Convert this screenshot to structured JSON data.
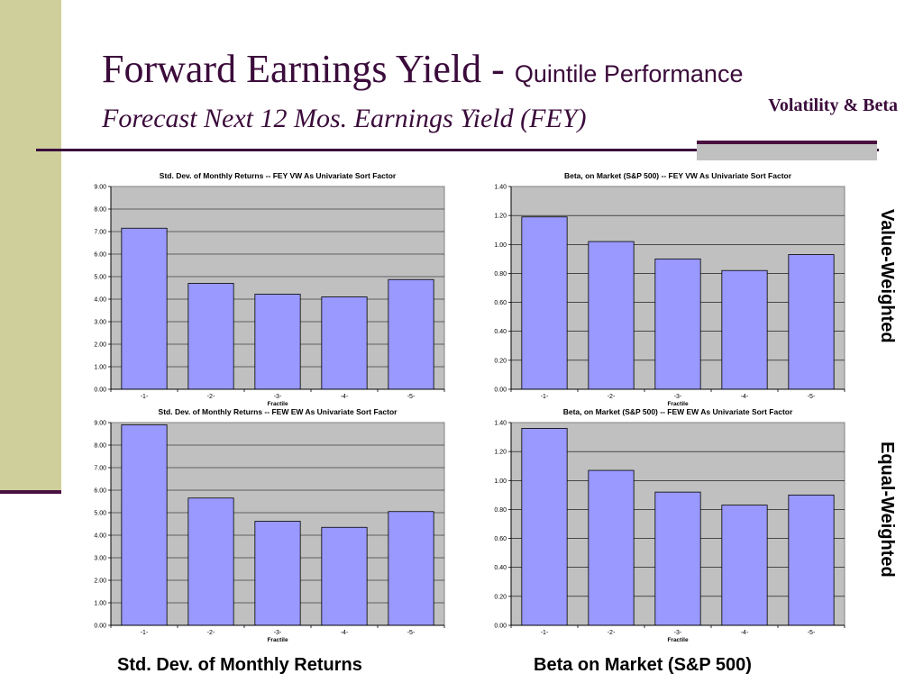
{
  "slide": {
    "title": "Forward Earnings Yield - ",
    "title_sub": "Quintile Performance",
    "subtitle": "Forecast Next 12 Mos. Earnings Yield (FEY)",
    "corner_label": "Volatility & Beta",
    "row_labels": [
      "Value-Weighted",
      "Equal-Weighted"
    ],
    "column_labels": [
      "Std. Dev. of Monthly Returns",
      "Beta on Market (S&P 500)"
    ]
  },
  "colors": {
    "bar": "#9999ff",
    "plot_bg": "#c0c0c0",
    "title": "#3b0b3b",
    "accent_strip": "#cfcf9c"
  },
  "chart_data": [
    {
      "type": "bar",
      "title": "Std. Dev. of Monthly Returns  -- FEY VW As Univariate Sort Factor",
      "categories": [
        "-1-",
        "-2-",
        "-3-",
        "-4-",
        "-5-"
      ],
      "values": [
        7.15,
        4.7,
        4.22,
        4.1,
        4.87
      ],
      "xlabel": "Fractile",
      "ylabel": "",
      "ylim": [
        0,
        9
      ],
      "yticks": [
        "0.00",
        "1.00",
        "2.00",
        "3.00",
        "4.00",
        "5.00",
        "6.00",
        "7.00",
        "8.00",
        "9.00"
      ],
      "grid": true
    },
    {
      "type": "bar",
      "title": "Beta, on Market (S&P 500)  -- FEY VW As Univariate Sort Factor",
      "categories": [
        "-1-",
        "-2-",
        "-3-",
        "-4-",
        "-5-"
      ],
      "values": [
        1.19,
        1.02,
        0.9,
        0.82,
        0.93
      ],
      "xlabel": "Fractile",
      "ylabel": "",
      "ylim": [
        0,
        1.4
      ],
      "yticks": [
        "0.00",
        "0.20",
        "0.40",
        "0.60",
        "0.80",
        "1.00",
        "1.20",
        "1.40"
      ],
      "grid": true
    },
    {
      "type": "bar",
      "title": "Std. Dev. of Monthly Returns  -- FEW EW As Univariate Sort Factor",
      "categories": [
        "-1-",
        "-2-",
        "-3-",
        "-4-",
        "-5-"
      ],
      "values": [
        8.9,
        5.65,
        4.62,
        4.35,
        5.05
      ],
      "xlabel": "Fractile",
      "ylabel": "",
      "ylim": [
        0,
        9
      ],
      "yticks": [
        "0.00",
        "1.00",
        "2.00",
        "3.00",
        "4.00",
        "5.00",
        "6.00",
        "7.00",
        "8.00",
        "9.00"
      ],
      "grid": true
    },
    {
      "type": "bar",
      "title": "Beta, on Market (S&P 500)  -- FEW EW As Univariate Sort Factor",
      "categories": [
        "-1-",
        "-2-",
        "-3-",
        "-4-",
        "-5-"
      ],
      "values": [
        1.36,
        1.07,
        0.92,
        0.83,
        0.9
      ],
      "xlabel": "Fractile",
      "ylabel": "",
      "ylim": [
        0,
        1.4
      ],
      "yticks": [
        "0.00",
        "0.20",
        "0.40",
        "0.60",
        "0.80",
        "1.00",
        "1.20",
        "1.40"
      ],
      "grid": true
    }
  ]
}
